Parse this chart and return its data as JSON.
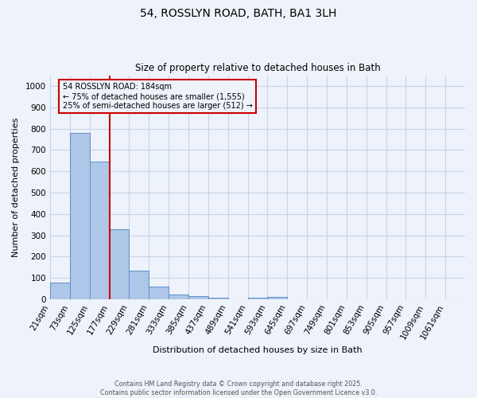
{
  "title1": "54, ROSSLYN ROAD, BATH, BA1 3LH",
  "title2": "Size of property relative to detached houses in Bath",
  "xlabel": "Distribution of detached houses by size in Bath",
  "ylabel": "Number of detached properties",
  "annotation_line1": "54 ROSSLYN ROAD: 184sqm",
  "annotation_line2": "← 75% of detached houses are smaller (1,555)",
  "annotation_line3": "25% of semi-detached houses are larger (512) →",
  "footer1": "Contains HM Land Registry data © Crown copyright and database right 2025.",
  "footer2": "Contains public sector information licensed under the Open Government Licence v3.0.",
  "red_line_x": 177,
  "categories": [
    "21sqm",
    "73sqm",
    "125sqm",
    "177sqm",
    "229sqm",
    "281sqm",
    "333sqm",
    "385sqm",
    "437sqm",
    "489sqm",
    "541sqm",
    "593sqm",
    "645sqm",
    "697sqm",
    "749sqm",
    "801sqm",
    "853sqm",
    "905sqm",
    "957sqm",
    "1009sqm",
    "1061sqm"
  ],
  "bin_starts": [
    21,
    73,
    125,
    177,
    229,
    281,
    333,
    385,
    437,
    489,
    541,
    593,
    645,
    697,
    749,
    801,
    853,
    905,
    957,
    1009,
    1061
  ],
  "values": [
    80,
    780,
    645,
    330,
    133,
    60,
    22,
    15,
    8,
    0,
    8,
    10,
    0,
    0,
    0,
    0,
    0,
    0,
    0,
    0,
    0
  ],
  "bar_color": "#aec6e8",
  "bar_edge_color": "#5b8fc9",
  "red_line_color": "#cc0000",
  "grid_color": "#c8d4e8",
  "background_color": "#eef2fa",
  "ylim": [
    0,
    1050
  ],
  "yticks": [
    0,
    100,
    200,
    300,
    400,
    500,
    600,
    700,
    800,
    900,
    1000
  ],
  "bin_width": 52,
  "figsize": [
    6.0,
    5.0
  ],
  "dpi": 100
}
